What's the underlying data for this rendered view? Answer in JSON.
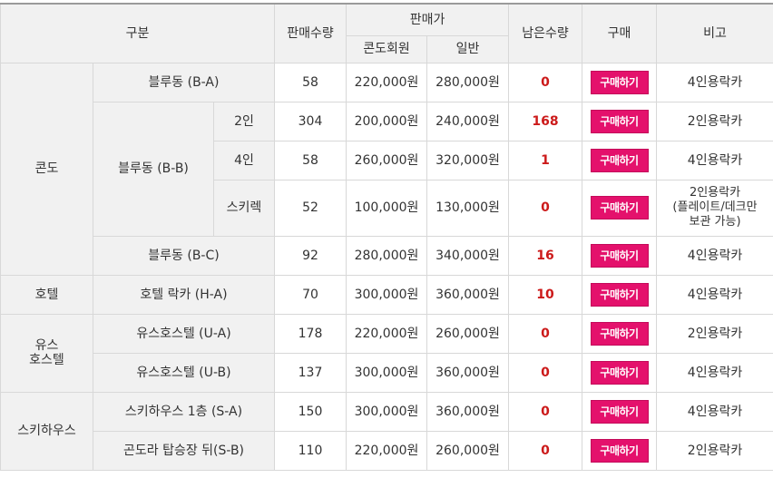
{
  "header": {
    "category": "구분",
    "sold_qty": "판매수량",
    "price": "판매가",
    "price_member": "콘도회원",
    "price_general": "일반",
    "remaining": "남은수량",
    "buy": "구매",
    "note": "비고"
  },
  "buy_label": "구매하기",
  "groups": {
    "condo": "콘도",
    "hotel": "호텔",
    "youth": "유스\n호스텔",
    "skihouse": "스키하우스"
  },
  "subgroups": {
    "blue_bb": "블루동 (B-B)"
  },
  "rows": [
    {
      "name": "블루동 (B-A)",
      "sold": "58",
      "member": "220,000원",
      "general": "280,000원",
      "remain": "0",
      "note": "4인용락카"
    },
    {
      "name": "2인",
      "sold": "304",
      "member": "200,000원",
      "general": "240,000원",
      "remain": "168",
      "note": "2인용락카"
    },
    {
      "name": "4인",
      "sold": "58",
      "member": "260,000원",
      "general": "320,000원",
      "remain": "1",
      "note": "4인용락카"
    },
    {
      "name": "스키렉",
      "sold": "52",
      "member": "100,000원",
      "general": "130,000원",
      "remain": "0",
      "note": "2인용락카\n(플레이트/데크만\n보관 가능)"
    },
    {
      "name": "블루동 (B-C)",
      "sold": "92",
      "member": "280,000원",
      "general": "340,000원",
      "remain": "16",
      "note": "4인용락카"
    },
    {
      "name": "호텔 락카 (H-A)",
      "sold": "70",
      "member": "300,000원",
      "general": "360,000원",
      "remain": "10",
      "note": "4인용락카"
    },
    {
      "name": "유스호스텔 (U-A)",
      "sold": "178",
      "member": "220,000원",
      "general": "260,000원",
      "remain": "0",
      "note": "2인용락카"
    },
    {
      "name": "유스호스텔 (U-B)",
      "sold": "137",
      "member": "300,000원",
      "general": "360,000원",
      "remain": "0",
      "note": "4인용락카"
    },
    {
      "name": "스키하우스 1층 (S-A)",
      "sold": "150",
      "member": "300,000원",
      "general": "360,000원",
      "remain": "0",
      "note": "4인용락카"
    },
    {
      "name": "곤도라 탑승장 뒤(S-B)",
      "sold": "110",
      "member": "220,000원",
      "general": "260,000원",
      "remain": "0",
      "note": "2인용락카"
    }
  ],
  "colors": {
    "buy_button": "#e4116c",
    "remaining_text": "#cc1a1a",
    "header_bg": "#f1f1f1"
  }
}
